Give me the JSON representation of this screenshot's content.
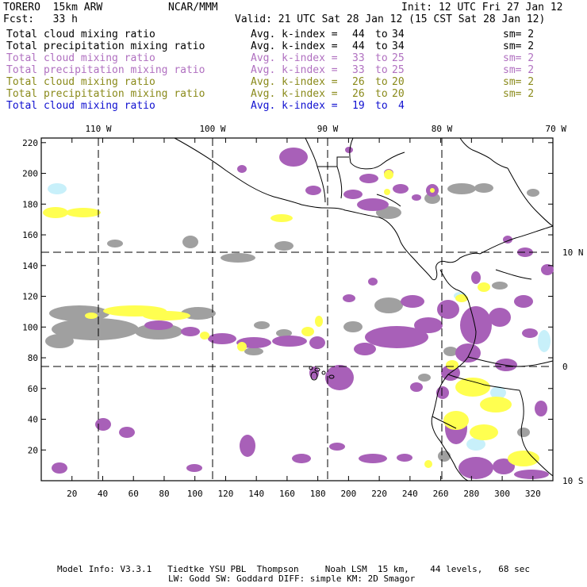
{
  "header": {
    "model": "TORERO  15km ARW",
    "org": "NCAR/MMM",
    "init": "Init: 12 UTC Fri 27 Jan 12",
    "fcst": "Fcst:   33 h",
    "valid": "Valid: 21 UTC Sat 28 Jan 12 (15 CST Sat 28 Jan 12)"
  },
  "legend": [
    {
      "field": "Total cloud mixing ratio",
      "stat": "Avg. k-index =",
      "from": "44",
      "to": "34",
      "sm": "sm= 2",
      "color": "#000000"
    },
    {
      "field": "Total precipitation mixing ratio",
      "stat": "Avg. k-index =",
      "from": "44",
      "to": "34",
      "sm": "sm= 2",
      "color": "#000000"
    },
    {
      "field": "Total cloud mixing ratio",
      "stat": "Avg. k-index =",
      "from": "33",
      "to": "25",
      "sm": "sm= 2",
      "color": "#b070c0"
    },
    {
      "field": "Total precipitation mixing ratio",
      "stat": "Avg. k-index =",
      "from": "33",
      "to": "25",
      "sm": "sm= 2",
      "color": "#b070c0"
    },
    {
      "field": "Total cloud mixing ratio",
      "stat": "Avg. k-index =",
      "from": "26",
      "to": "20",
      "sm": "sm= 2",
      "color": "#8a8a1a"
    },
    {
      "field": "Total precipitation mixing ratio",
      "stat": "Avg. k-index =",
      "from": "26",
      "to": "20",
      "sm": "sm= 2",
      "color": "#8a8a1a"
    },
    {
      "field": "Total cloud mixing ratio",
      "stat": "Avg. k-index =",
      "from": "19",
      "to": "4",
      "sm": "",
      "color": "#1010d0"
    }
  ],
  "map": {
    "lon_labels": [
      "110 W",
      "100 W",
      "90 W",
      "80 W",
      "70 W"
    ],
    "lat_labels": [
      "10 N",
      "0",
      "10 S"
    ],
    "x_ticks": [
      "20",
      "40",
      "60",
      "80",
      "100",
      "120",
      "140",
      "160",
      "180",
      "200",
      "220",
      "240",
      "260",
      "280",
      "300",
      "320"
    ],
    "y_ticks": [
      "220",
      "200",
      "180",
      "160",
      "140",
      "120",
      "100",
      "80",
      "60",
      "40",
      "20"
    ]
  },
  "footer": {
    "line1": "Model Info: V3.3.1   Tiedtke YSU PBL  Thompson     Noah LSM  15 km,    44 levels,   68 sec",
    "line2": "LW: Godd SW: Goddard DIFF: simple KM: 2D Smagor"
  },
  "colors": {
    "gray": "#a0a0a0",
    "purple": "#a860b8",
    "yellow": "#ffff50",
    "lightblue": "#c8f0fa"
  }
}
